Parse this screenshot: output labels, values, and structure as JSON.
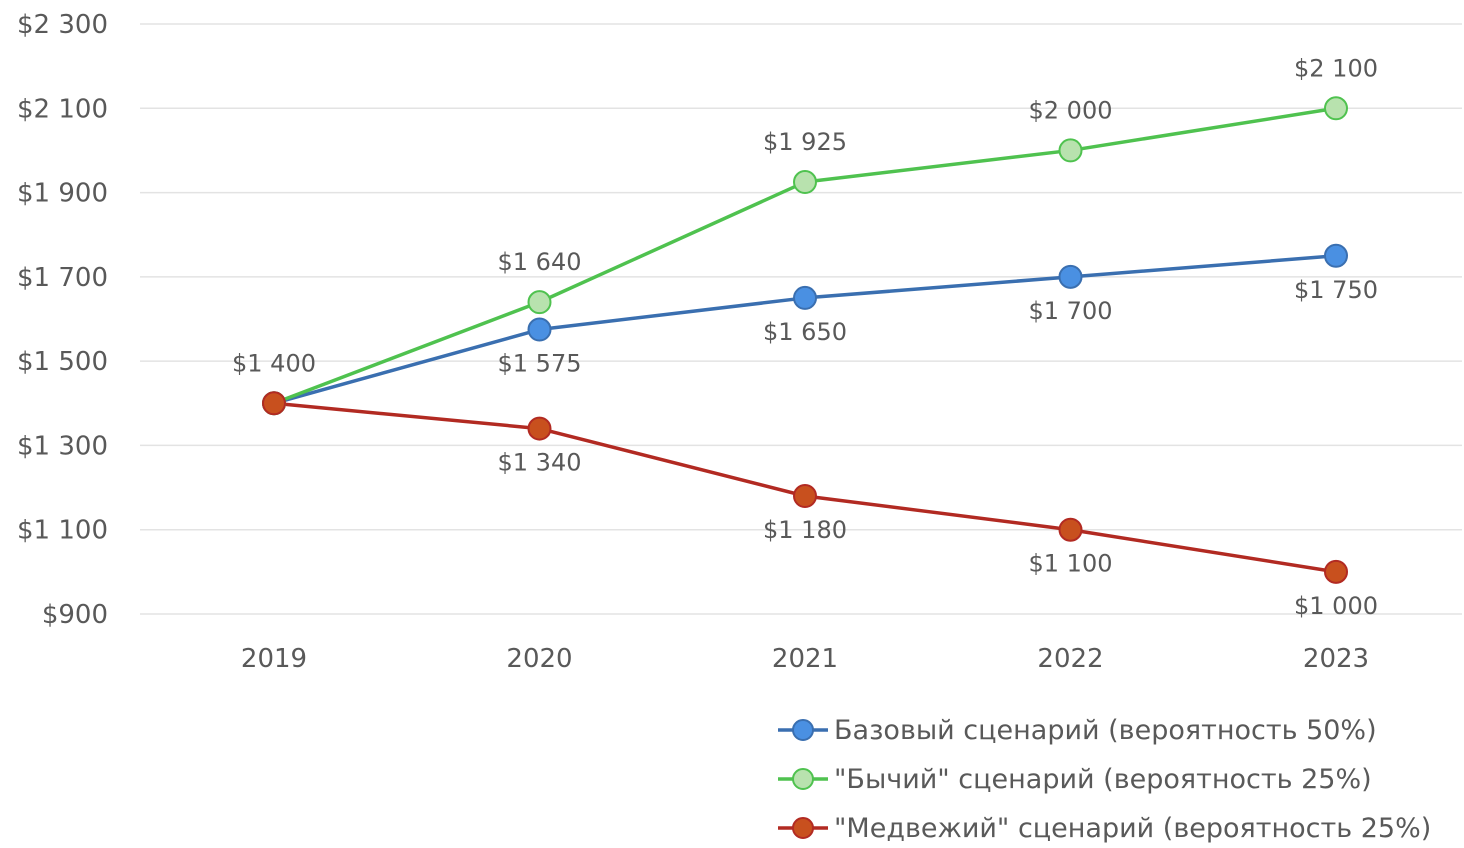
{
  "chart_data": {
    "type": "line",
    "title": "",
    "xlabel": "",
    "ylabel": "",
    "categories": [
      "2019",
      "2020",
      "2021",
      "2022",
      "2023"
    ],
    "ylim": [
      900,
      2300
    ],
    "yticks": [
      900,
      1100,
      1300,
      1500,
      1700,
      1900,
      2100,
      2300
    ],
    "ytick_labels": [
      "$900",
      "$1 100",
      "$1 300",
      "$1 500",
      "$1 700",
      "$1 900",
      "$2 100",
      "$2 300"
    ],
    "grid": true,
    "legend_position": "bottom-right",
    "series": [
      {
        "name": "Базовый сценарий (вероятность 50%)",
        "key": "base",
        "color": "#4a90e2",
        "line_color": "#3a6fb0",
        "values": [
          1400,
          1575,
          1650,
          1700,
          1750
        ],
        "labels": [
          "",
          "$1 575",
          "$1 650",
          "$1 700",
          "$1 750"
        ],
        "label_position": [
          "none",
          "below",
          "below",
          "below",
          "below"
        ]
      },
      {
        "name": "\"Бычий\" сценарий (вероятность 25%)",
        "key": "bull",
        "color": "#b8e2ae",
        "line_color": "#4fc24f",
        "values": [
          1400,
          1640,
          1925,
          2000,
          2100
        ],
        "labels": [
          "",
          "$1 640",
          "$1 925",
          "$2 000",
          "$2 100"
        ],
        "label_position": [
          "none",
          "above",
          "above",
          "above",
          "above"
        ]
      },
      {
        "name": "\"Медвежий\" сценарий (вероятность 25%)",
        "key": "bear",
        "color": "#c8501e",
        "line_color": "#b22a22",
        "values": [
          1400,
          1340,
          1180,
          1100,
          1000
        ],
        "labels": [
          "$1 400",
          "$1 340",
          "$1 180",
          "$1 100",
          "$1 000"
        ],
        "label_position": [
          "above",
          "below",
          "below",
          "below",
          "below"
        ]
      }
    ]
  }
}
